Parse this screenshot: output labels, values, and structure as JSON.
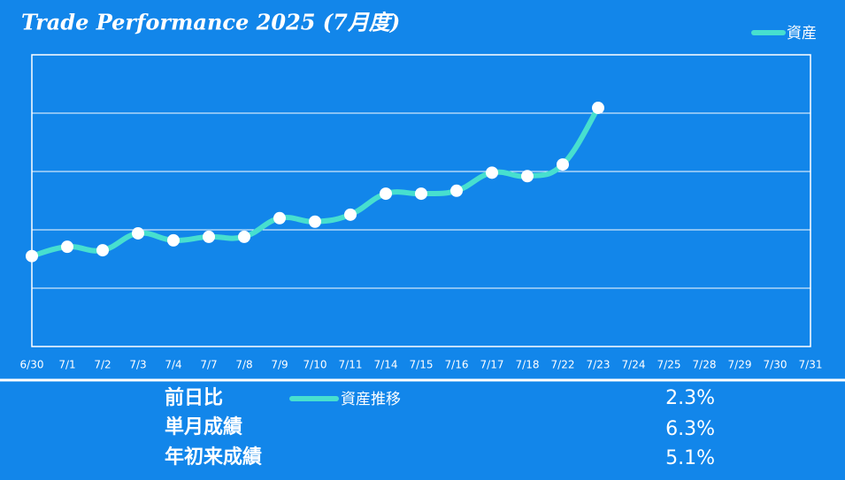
{
  "chart_data": {
    "type": "line",
    "title": "Trade Performance 2025 (7月度)",
    "categories": [
      "6/30",
      "7/1",
      "7/2",
      "7/3",
      "7/4",
      "7/7",
      "7/8",
      "7/9",
      "7/10",
      "7/11",
      "7/14",
      "7/15",
      "7/16",
      "7/17",
      "7/18",
      "7/22",
      "7/23",
      "7/24",
      "7/25",
      "7/28",
      "7/29",
      "7/30",
      "7/31"
    ],
    "series": [
      {
        "name": "資産",
        "color": "#47dfcf",
        "values": [
          1.55,
          1.71,
          1.65,
          1.94,
          1.82,
          1.88,
          1.88,
          2.2,
          2.14,
          2.26,
          2.62,
          2.62,
          2.67,
          2.98,
          2.92,
          3.12,
          4.09,
          null,
          null,
          null,
          null,
          null,
          null
        ]
      }
    ],
    "ylim": [
      0,
      5
    ],
    "yticks": [
      0,
      1,
      2,
      3,
      4,
      5
    ],
    "grid": true,
    "legend": "top-right"
  },
  "summary": {
    "legend": "資産推移",
    "rows": [
      [
        "前日比",
        "2.3%"
      ],
      [
        "単月成績",
        "6.3%"
      ],
      [
        "年初来成績",
        "5.1%"
      ]
    ]
  }
}
